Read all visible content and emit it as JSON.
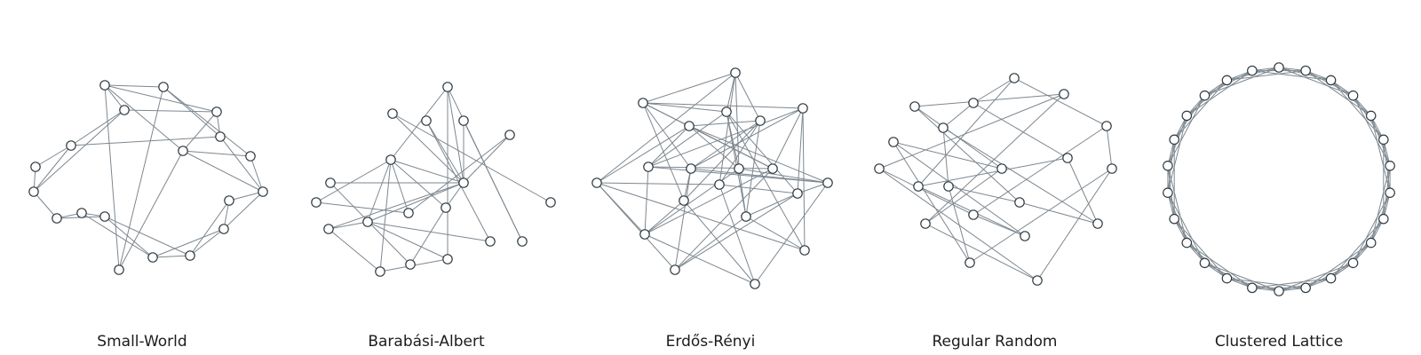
{
  "figure": {
    "panels": [
      {
        "title": "Small-World",
        "nodes": [
          "n0",
          "n1",
          "n2",
          "n3",
          "n4",
          "n5",
          "n6",
          "n7",
          "n8",
          "n9",
          "n10",
          "n11",
          "n12",
          "n13",
          "n14",
          "n15",
          "n16",
          "n17",
          "n18"
        ],
        "edges": [
          [
            0,
            1
          ],
          [
            0,
            2
          ],
          [
            1,
            3
          ],
          [
            2,
            3
          ],
          [
            2,
            4
          ],
          [
            3,
            5
          ],
          [
            0,
            4
          ],
          [
            4,
            5
          ],
          [
            5,
            6
          ],
          [
            6,
            7
          ],
          [
            5,
            7
          ],
          [
            7,
            8
          ],
          [
            8,
            9
          ],
          [
            9,
            10
          ],
          [
            10,
            11
          ],
          [
            11,
            12
          ],
          [
            10,
            12
          ],
          [
            12,
            13
          ],
          [
            13,
            14
          ],
          [
            14,
            15
          ],
          [
            15,
            16
          ],
          [
            16,
            17
          ],
          [
            17,
            18
          ],
          [
            18,
            0
          ],
          [
            0,
            17
          ],
          [
            1,
            16
          ],
          [
            1,
            18
          ],
          [
            2,
            17
          ],
          [
            15,
            17
          ],
          [
            3,
            15
          ],
          [
            13,
            15
          ],
          [
            12,
            14
          ],
          [
            11,
            13
          ],
          [
            8,
            10
          ],
          [
            9,
            11
          ],
          [
            4,
            7
          ]
        ]
      },
      {
        "title": "Barabási-Albert",
        "nodes": [
          "n0",
          "n1",
          "n2",
          "n3",
          "n4",
          "n5",
          "n6",
          "n7",
          "n8",
          "n9",
          "n10",
          "n11",
          "n12",
          "n13",
          "n14",
          "n15",
          "n16",
          "n17",
          "n18"
        ],
        "edges": [
          [
            0,
            1
          ],
          [
            0,
            4
          ],
          [
            0,
            5
          ],
          [
            0,
            6
          ],
          [
            0,
            7
          ],
          [
            0,
            8
          ],
          [
            0,
            9
          ],
          [
            0,
            3
          ],
          [
            0,
            11
          ],
          [
            1,
            2
          ],
          [
            1,
            10
          ],
          [
            1,
            12
          ],
          [
            1,
            3
          ],
          [
            1,
            13
          ],
          [
            2,
            14
          ],
          [
            3,
            15
          ],
          [
            3,
            16
          ],
          [
            4,
            17
          ],
          [
            5,
            18
          ],
          [
            6,
            16
          ],
          [
            7,
            17
          ],
          [
            8,
            12
          ],
          [
            9,
            14
          ],
          [
            10,
            12
          ],
          [
            11,
            13
          ],
          [
            13,
            15
          ],
          [
            0,
            2
          ],
          [
            1,
            4
          ],
          [
            4,
            15
          ],
          [
            3,
            11
          ]
        ]
      },
      {
        "title": "Erdős-Rényi",
        "nodes": [
          "n0",
          "n1",
          "n2",
          "n3",
          "n4",
          "n5",
          "n6",
          "n7",
          "n8",
          "n9",
          "n10",
          "n11",
          "n12",
          "n13",
          "n14",
          "n15",
          "n16",
          "n17",
          "n18",
          "n19"
        ],
        "edges": [
          [
            0,
            1
          ],
          [
            0,
            2
          ],
          [
            0,
            4
          ],
          [
            0,
            7
          ],
          [
            0,
            9
          ],
          [
            1,
            5
          ],
          [
            1,
            8
          ],
          [
            1,
            12
          ],
          [
            1,
            10
          ],
          [
            2,
            7
          ],
          [
            2,
            14
          ],
          [
            2,
            9
          ],
          [
            3,
            5
          ],
          [
            3,
            6
          ],
          [
            3,
            11
          ],
          [
            3,
            12
          ],
          [
            4,
            6
          ],
          [
            4,
            8
          ],
          [
            4,
            14
          ],
          [
            4,
            19
          ],
          [
            5,
            10
          ],
          [
            5,
            13
          ],
          [
            5,
            15
          ],
          [
            6,
            11
          ],
          [
            6,
            16
          ],
          [
            6,
            2
          ],
          [
            7,
            13
          ],
          [
            7,
            17
          ],
          [
            8,
            11
          ],
          [
            8,
            15
          ],
          [
            9,
            16
          ],
          [
            9,
            17
          ],
          [
            10,
            12
          ],
          [
            10,
            18
          ],
          [
            11,
            14
          ],
          [
            12,
            16
          ],
          [
            12,
            19
          ],
          [
            13,
            18
          ],
          [
            14,
            17
          ],
          [
            15,
            19
          ],
          [
            16,
            18
          ],
          [
            17,
            15
          ],
          [
            3,
            8
          ],
          [
            2,
            19
          ],
          [
            0,
            13
          ],
          [
            1,
            4
          ],
          [
            6,
            9
          ],
          [
            5,
            7
          ],
          [
            10,
            14
          ],
          [
            11,
            18
          ],
          [
            12,
            17
          ],
          [
            13,
            16
          ],
          [
            8,
            16
          ],
          [
            3,
            9
          ],
          [
            4,
            15
          ],
          [
            0,
            3
          ],
          [
            14,
            15
          ],
          [
            7,
            11
          ]
        ]
      },
      {
        "title": "Regular Random",
        "nodes": [
          "n0",
          "n1",
          "n2",
          "n3",
          "n4",
          "n5",
          "n6",
          "n7",
          "n8",
          "n9",
          "n10",
          "n11",
          "n12",
          "n13",
          "n14",
          "n15",
          "n16",
          "n17",
          "n18",
          "n19"
        ],
        "edges": [
          [
            0,
            2
          ],
          [
            0,
            4
          ],
          [
            0,
            11
          ],
          [
            1,
            3
          ],
          [
            1,
            7
          ],
          [
            1,
            15
          ],
          [
            2,
            5
          ],
          [
            2,
            8
          ],
          [
            3,
            9
          ],
          [
            3,
            13
          ],
          [
            4,
            10
          ],
          [
            4,
            14
          ],
          [
            5,
            12
          ],
          [
            5,
            16
          ],
          [
            6,
            9
          ],
          [
            6,
            17
          ],
          [
            6,
            18
          ],
          [
            7,
            14
          ],
          [
            7,
            19
          ],
          [
            8,
            11
          ],
          [
            8,
            16
          ],
          [
            9,
            15
          ],
          [
            10,
            18
          ],
          [
            10,
            19
          ],
          [
            11,
            17
          ],
          [
            12,
            13
          ],
          [
            12,
            18
          ],
          [
            13,
            16
          ],
          [
            14,
            17
          ],
          [
            15,
            19
          ]
        ]
      },
      {
        "title": "Clustered Lattice",
        "nodes": [
          "n0",
          "n1",
          "n2",
          "n3",
          "n4",
          "n5",
          "n6",
          "n7",
          "n8",
          "n9",
          "n10",
          "n11",
          "n12",
          "n13",
          "n14",
          "n15",
          "n16",
          "n17",
          "n18",
          "n19",
          "n20",
          "n21",
          "n22",
          "n23",
          "n24",
          "n25"
        ],
        "edges": []
      }
    ]
  }
}
